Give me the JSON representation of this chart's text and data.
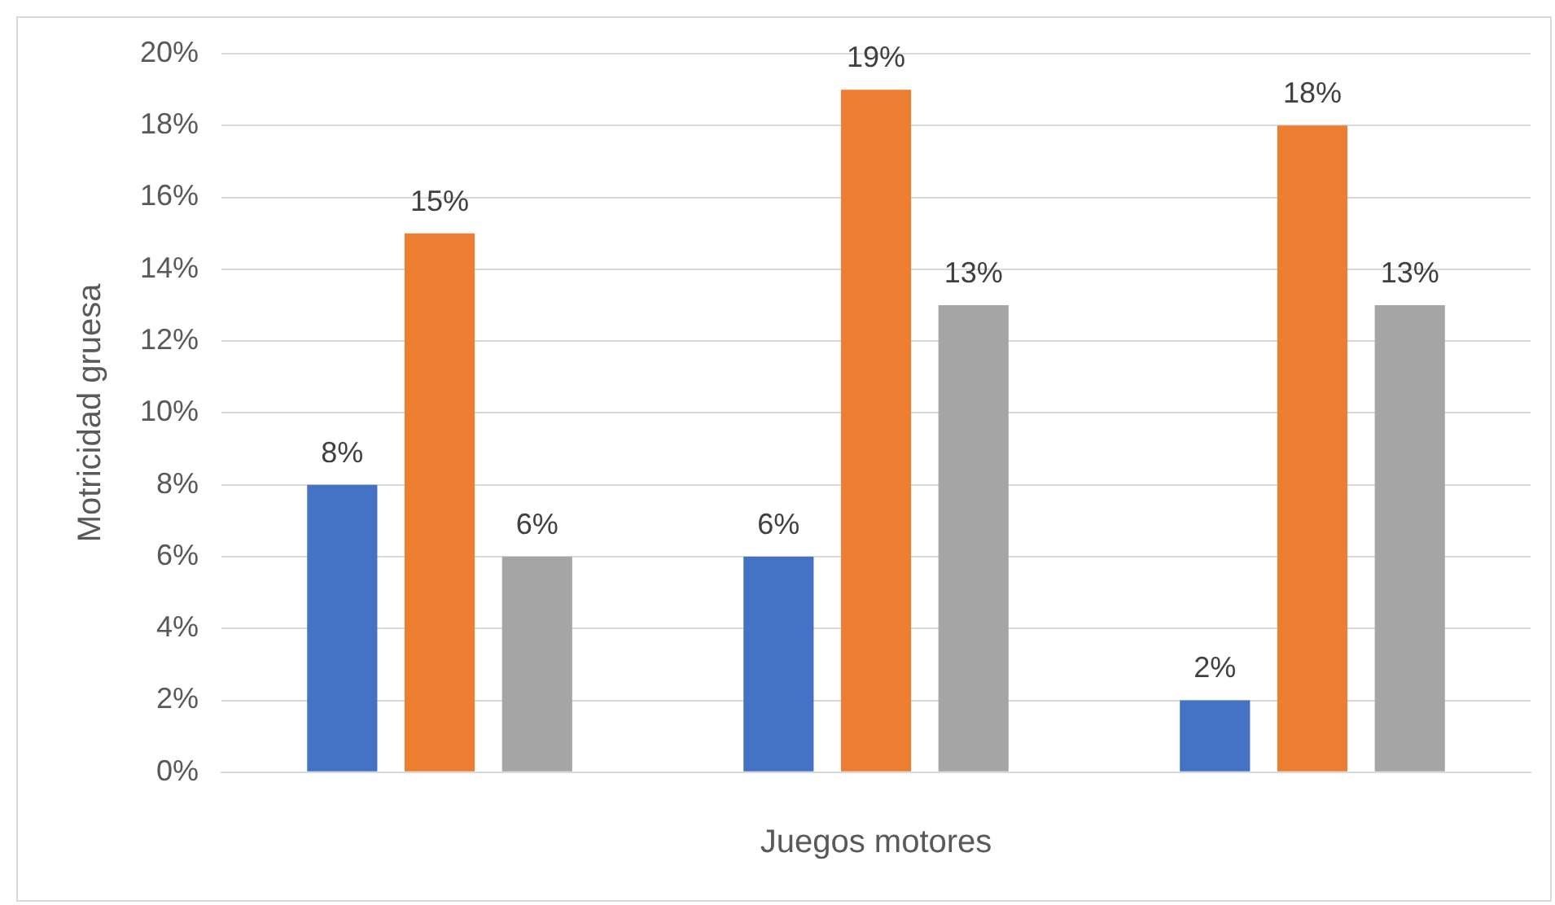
{
  "chart_data": {
    "type": "bar",
    "xlabel": "Juegos motores",
    "ylabel": "Motricidad gruesa",
    "categories": [
      null,
      null,
      null
    ],
    "series": [
      {
        "color": "#4472c4",
        "values": [
          8,
          6,
          2
        ],
        "value_labels": [
          "8%",
          "6%",
          "2%"
        ]
      },
      {
        "color": "#ed7d31",
        "values": [
          15,
          19,
          18
        ],
        "value_labels": [
          "15%",
          "19%",
          "18%"
        ]
      },
      {
        "color": "#a5a5a5",
        "values": [
          6,
          13,
          13
        ],
        "value_labels": [
          "6%",
          "13%",
          "13%"
        ]
      }
    ],
    "ylim": [
      0,
      20
    ],
    "yticks": [
      {
        "value": 0,
        "label": "0%"
      },
      {
        "value": 2,
        "label": "2%"
      },
      {
        "value": 4,
        "label": "4%"
      },
      {
        "value": 6,
        "label": "6%"
      },
      {
        "value": 8,
        "label": "8%"
      },
      {
        "value": 10,
        "label": "10%"
      },
      {
        "value": 12,
        "label": "12%"
      },
      {
        "value": 14,
        "label": "14%"
      },
      {
        "value": 16,
        "label": "16%"
      },
      {
        "value": 18,
        "label": "18%"
      },
      {
        "value": 20,
        "label": "20%"
      }
    ],
    "grid": "y",
    "legend": false
  }
}
